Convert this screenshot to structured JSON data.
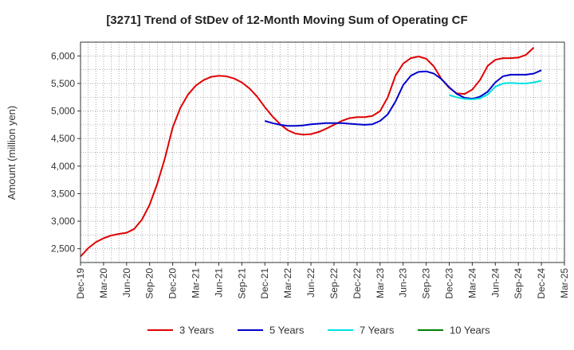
{
  "chart_data": {
    "type": "line",
    "title": "[3271]  Trend of StDev of 12-Month Moving Sum of Operating CF",
    "xlabel": "",
    "ylabel": "Amount (million yen)",
    "ylim": [
      2250,
      6250
    ],
    "yticks": [
      2500,
      3000,
      3500,
      4000,
      4500,
      5000,
      5500,
      6000
    ],
    "ytick_labels": [
      "2,500",
      "3,000",
      "3,500",
      "4,000",
      "4,500",
      "5,000",
      "5,500",
      "6,000"
    ],
    "x_start": "Dec-19",
    "x_count": 64,
    "xtick_labels": [
      "Dec-19",
      "Mar-20",
      "Jun-20",
      "Sep-20",
      "Dec-20",
      "Mar-21",
      "Jun-21",
      "Sep-21",
      "Dec-21",
      "Mar-22",
      "Jun-22",
      "Sep-22",
      "Dec-22",
      "Mar-23",
      "Jun-23",
      "Sep-23",
      "Dec-23",
      "Mar-24",
      "Jun-24",
      "Sep-24",
      "Dec-24",
      "Mar-25"
    ],
    "grid": true,
    "legend_position": "bottom",
    "series": [
      {
        "name": "3 Years",
        "color": "#e00000",
        "start_index": 0,
        "values": [
          2360,
          2510,
          2620,
          2690,
          2740,
          2770,
          2790,
          2860,
          3030,
          3300,
          3680,
          4150,
          4700,
          5060,
          5300,
          5460,
          5560,
          5620,
          5640,
          5630,
          5590,
          5520,
          5410,
          5260,
          5070,
          4900,
          4760,
          4650,
          4590,
          4570,
          4580,
          4620,
          4680,
          4750,
          4820,
          4870,
          4890,
          4890,
          4910,
          5000,
          5250,
          5640,
          5860,
          5960,
          5990,
          5950,
          5810,
          5580,
          5420,
          5320,
          5310,
          5390,
          5560,
          5820,
          5930,
          5960,
          5960,
          5970,
          6020,
          6150
        ]
      },
      {
        "name": "5 Years",
        "color": "#0000cc",
        "start_index": 24,
        "values": [
          4820,
          4780,
          4750,
          4730,
          4730,
          4740,
          4760,
          4770,
          4780,
          4780,
          4780,
          4770,
          4760,
          4750,
          4760,
          4820,
          4940,
          5170,
          5470,
          5640,
          5710,
          5720,
          5680,
          5580,
          5430,
          5310,
          5240,
          5220,
          5260,
          5350,
          5520,
          5630,
          5660,
          5660,
          5660,
          5680,
          5740
        ]
      },
      {
        "name": "7 Years",
        "color": "#00e0e0",
        "start_index": 48,
        "values": [
          5290,
          5250,
          5220,
          5210,
          5230,
          5300,
          5440,
          5500,
          5510,
          5500,
          5500,
          5520,
          5550
        ]
      },
      {
        "name": "10 Years",
        "color": "#008000",
        "start_index": 0,
        "values": []
      }
    ]
  }
}
